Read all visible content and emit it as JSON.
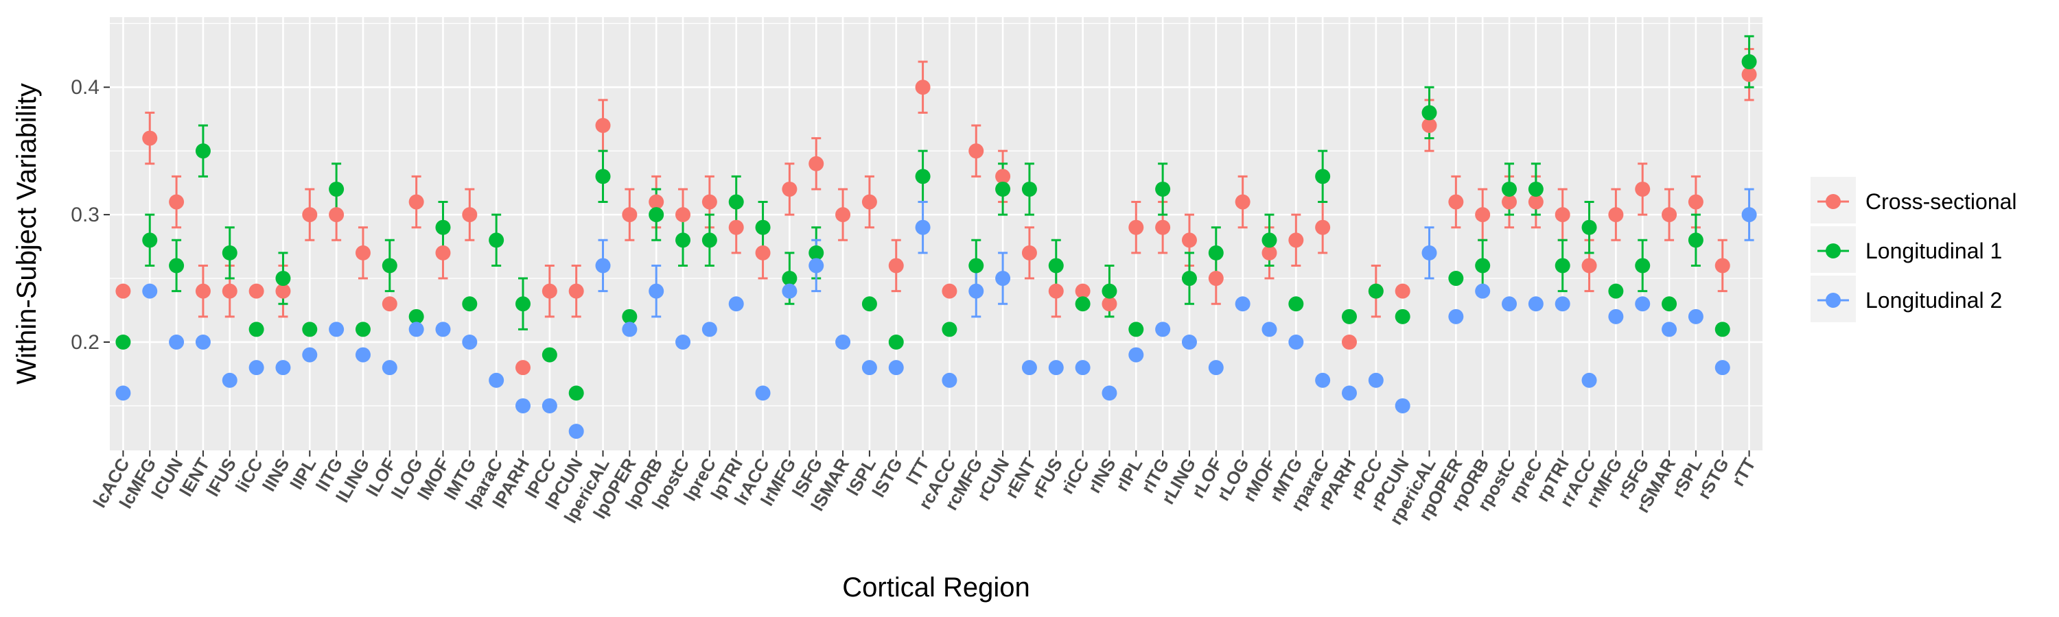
{
  "chart_data": {
    "type": "scatter",
    "title": "",
    "xlabel": "Cortical Region",
    "ylabel": "Within-Subject Variability",
    "ylim": [
      0.115,
      0.455
    ],
    "yticks": [
      0.2,
      0.3,
      0.4
    ],
    "ytick_labels": [
      "0.2",
      "0.3",
      "0.4"
    ],
    "grid": true,
    "legend_position": "right",
    "categories": [
      "lcACC",
      "lcMFG",
      "lCUN",
      "lENT",
      "lFUS",
      "liCC",
      "lINS",
      "lIPL",
      "lITG",
      "lLING",
      "lLOF",
      "lLOG",
      "lMOF",
      "lMTG",
      "lparaC",
      "lPARH",
      "lPCC",
      "lPCUN",
      "lpericAL",
      "lpOPER",
      "lpORB",
      "lpostC",
      "lpreC",
      "lpTRI",
      "lrACC",
      "lrMFG",
      "lSFG",
      "lSMAR",
      "lSPL",
      "lSTG",
      "lTT",
      "rcACC",
      "rcMFG",
      "rCUN",
      "rENT",
      "rFUS",
      "riCC",
      "rINS",
      "rIPL",
      "rITG",
      "rLING",
      "rLOF",
      "rLOG",
      "rMOF",
      "rMTG",
      "rparaC",
      "rPARH",
      "rPCC",
      "rPCUN",
      "rpericAL",
      "rpOPER",
      "rpORB",
      "rpostC",
      "rpreC",
      "rpTRI",
      "rrACC",
      "rrMFG",
      "rSFG",
      "rSMAR",
      "rSPL",
      "rSTG",
      "rTT"
    ],
    "series": [
      {
        "name": "Cross-sectional",
        "color": "#F8766D",
        "values": [
          0.24,
          0.36,
          0.31,
          0.24,
          0.24,
          0.24,
          0.24,
          0.3,
          0.3,
          0.27,
          0.23,
          0.31,
          0.27,
          0.3,
          null,
          0.18,
          0.24,
          0.24,
          0.37,
          0.3,
          0.31,
          0.3,
          0.31,
          0.29,
          0.27,
          0.32,
          0.34,
          0.3,
          0.31,
          0.26,
          0.4,
          0.24,
          0.35,
          0.33,
          0.27,
          0.24,
          0.24,
          0.23,
          0.29,
          0.29,
          0.28,
          0.25,
          0.31,
          0.27,
          0.28,
          0.29,
          0.2,
          0.24,
          0.24,
          0.37,
          0.31,
          0.3,
          0.31,
          0.31,
          0.3,
          0.26,
          0.3,
          0.32,
          0.3,
          0.31,
          0.26,
          0.41
        ],
        "error": [
          null,
          0.02,
          0.02,
          0.02,
          0.02,
          null,
          0.02,
          0.02,
          0.02,
          0.02,
          null,
          0.02,
          0.02,
          0.02,
          null,
          null,
          0.02,
          0.02,
          0.02,
          0.02,
          0.02,
          0.02,
          0.02,
          0.02,
          0.02,
          0.02,
          0.02,
          0.02,
          0.02,
          0.02,
          0.02,
          null,
          0.02,
          0.02,
          0.02,
          0.02,
          null,
          null,
          0.02,
          0.02,
          0.02,
          0.02,
          0.02,
          0.02,
          0.02,
          0.02,
          null,
          0.02,
          null,
          0.02,
          0.02,
          0.02,
          0.02,
          0.02,
          0.02,
          0.02,
          0.02,
          0.02,
          0.02,
          0.02,
          0.02,
          0.02
        ]
      },
      {
        "name": "Longitudinal 1",
        "color": "#00BA38",
        "values": [
          0.2,
          0.28,
          0.26,
          0.35,
          0.27,
          0.21,
          0.25,
          0.21,
          0.32,
          0.21,
          0.26,
          0.22,
          0.29,
          0.23,
          0.28,
          0.23,
          0.19,
          0.16,
          0.33,
          0.22,
          0.3,
          0.28,
          0.28,
          0.31,
          0.29,
          0.25,
          0.27,
          null,
          0.23,
          0.2,
          0.33,
          0.21,
          0.26,
          0.32,
          0.32,
          0.26,
          0.23,
          0.24,
          0.21,
          0.32,
          0.25,
          0.27,
          null,
          0.28,
          0.23,
          0.33,
          0.22,
          0.24,
          0.22,
          0.38,
          0.25,
          0.26,
          0.32,
          0.32,
          0.26,
          0.29,
          0.24,
          0.26,
          0.23,
          0.28,
          0.21,
          0.42
        ],
        "error": [
          null,
          0.02,
          0.02,
          0.02,
          0.02,
          null,
          0.02,
          null,
          0.02,
          null,
          0.02,
          null,
          0.02,
          null,
          0.02,
          0.02,
          null,
          null,
          0.02,
          null,
          0.02,
          0.02,
          0.02,
          0.02,
          0.02,
          0.02,
          0.02,
          null,
          null,
          null,
          0.02,
          null,
          0.02,
          0.02,
          0.02,
          0.02,
          null,
          0.02,
          null,
          0.02,
          0.02,
          0.02,
          null,
          0.02,
          null,
          0.02,
          null,
          null,
          null,
          0.02,
          null,
          0.02,
          0.02,
          0.02,
          0.02,
          0.02,
          null,
          0.02,
          null,
          0.02,
          null,
          0.02
        ]
      },
      {
        "name": "Longitudinal 2",
        "color": "#619CFF",
        "values": [
          0.16,
          0.24,
          0.2,
          0.2,
          0.17,
          0.18,
          0.18,
          0.19,
          0.21,
          0.19,
          0.18,
          0.21,
          0.21,
          0.2,
          0.17,
          0.15,
          0.15,
          0.13,
          0.26,
          0.21,
          0.24,
          0.2,
          0.21,
          0.23,
          0.16,
          0.24,
          0.26,
          0.2,
          0.18,
          0.18,
          0.29,
          0.17,
          0.24,
          0.25,
          0.18,
          0.18,
          0.18,
          0.16,
          0.19,
          0.21,
          0.2,
          0.18,
          0.23,
          0.21,
          0.2,
          0.17,
          0.16,
          0.17,
          0.15,
          0.27,
          0.22,
          0.24,
          0.23,
          0.23,
          0.23,
          0.17,
          0.22,
          0.23,
          0.21,
          0.22,
          0.18,
          0.3
        ],
        "error": [
          null,
          null,
          null,
          null,
          null,
          null,
          null,
          null,
          null,
          null,
          null,
          null,
          null,
          null,
          null,
          null,
          null,
          null,
          0.02,
          null,
          0.02,
          null,
          null,
          null,
          null,
          null,
          0.02,
          null,
          null,
          null,
          0.02,
          null,
          0.02,
          0.02,
          null,
          null,
          null,
          null,
          null,
          null,
          null,
          null,
          null,
          null,
          null,
          null,
          null,
          null,
          null,
          0.02,
          null,
          null,
          null,
          null,
          null,
          null,
          null,
          null,
          null,
          null,
          null,
          0.02
        ]
      }
    ]
  }
}
